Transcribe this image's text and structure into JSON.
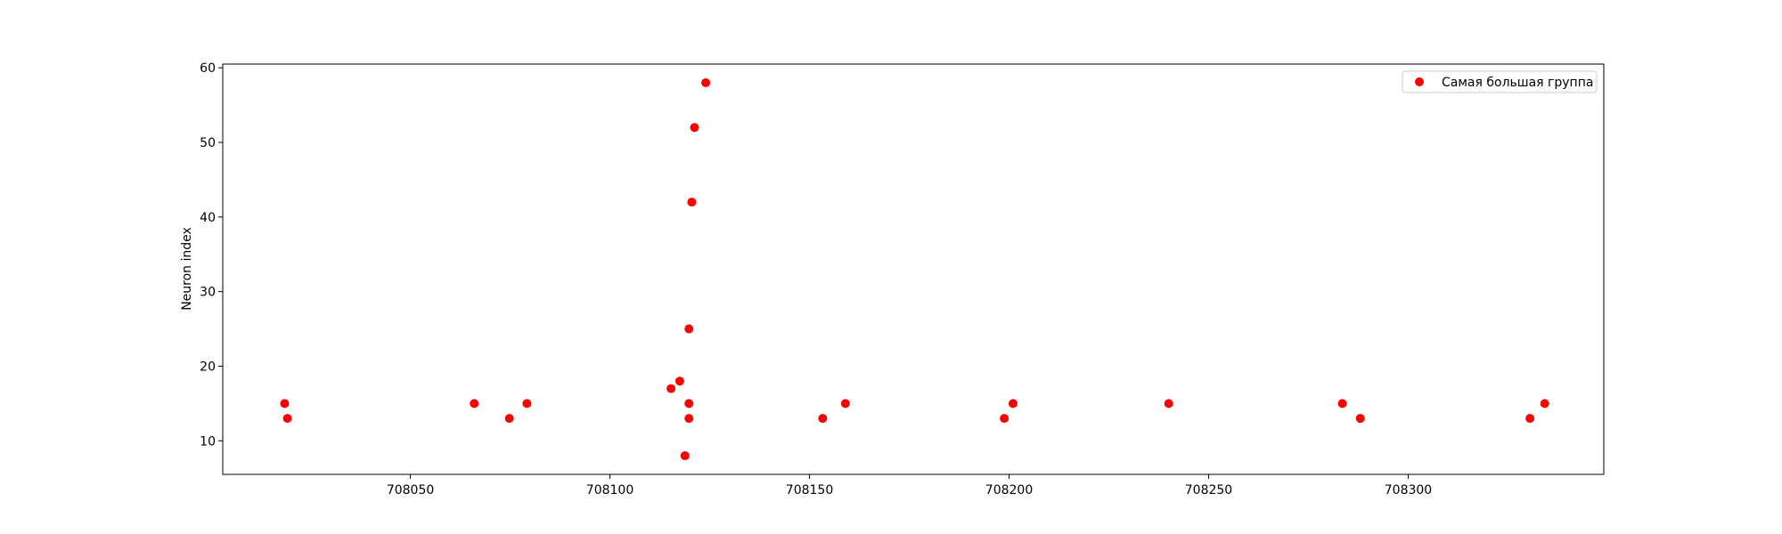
{
  "chart_data": {
    "type": "scatter",
    "title": "",
    "xlabel": "",
    "ylabel": "Neuron index",
    "xlim": [
      708003,
      708349
    ],
    "ylim": [
      5.5,
      60.5
    ],
    "xticks": [
      708050,
      708100,
      708150,
      708200,
      708250,
      708300
    ],
    "yticks": [
      10,
      20,
      30,
      40,
      50,
      60
    ],
    "grid": false,
    "legend": "top-right",
    "series": [
      {
        "name": "Самая большая группа",
        "color": "#ff0000",
        "points": [
          {
            "x": 708018.5,
            "y": 15
          },
          {
            "x": 708019.2,
            "y": 13
          },
          {
            "x": 708066.0,
            "y": 15
          },
          {
            "x": 708074.8,
            "y": 13
          },
          {
            "x": 708079.2,
            "y": 15
          },
          {
            "x": 708115.3,
            "y": 17
          },
          {
            "x": 708117.5,
            "y": 18
          },
          {
            "x": 708118.8,
            "y": 8
          },
          {
            "x": 708119.8,
            "y": 25
          },
          {
            "x": 708119.8,
            "y": 15
          },
          {
            "x": 708119.8,
            "y": 13
          },
          {
            "x": 708120.5,
            "y": 42
          },
          {
            "x": 708121.2,
            "y": 52
          },
          {
            "x": 708124.0,
            "y": 58
          },
          {
            "x": 708153.3,
            "y": 13
          },
          {
            "x": 708159.0,
            "y": 15
          },
          {
            "x": 708198.8,
            "y": 13
          },
          {
            "x": 708201.0,
            "y": 15
          },
          {
            "x": 708240.0,
            "y": 15
          },
          {
            "x": 708283.5,
            "y": 15
          },
          {
            "x": 708288.0,
            "y": 13
          },
          {
            "x": 708330.5,
            "y": 13
          },
          {
            "x": 708334.2,
            "y": 15
          }
        ]
      }
    ]
  }
}
